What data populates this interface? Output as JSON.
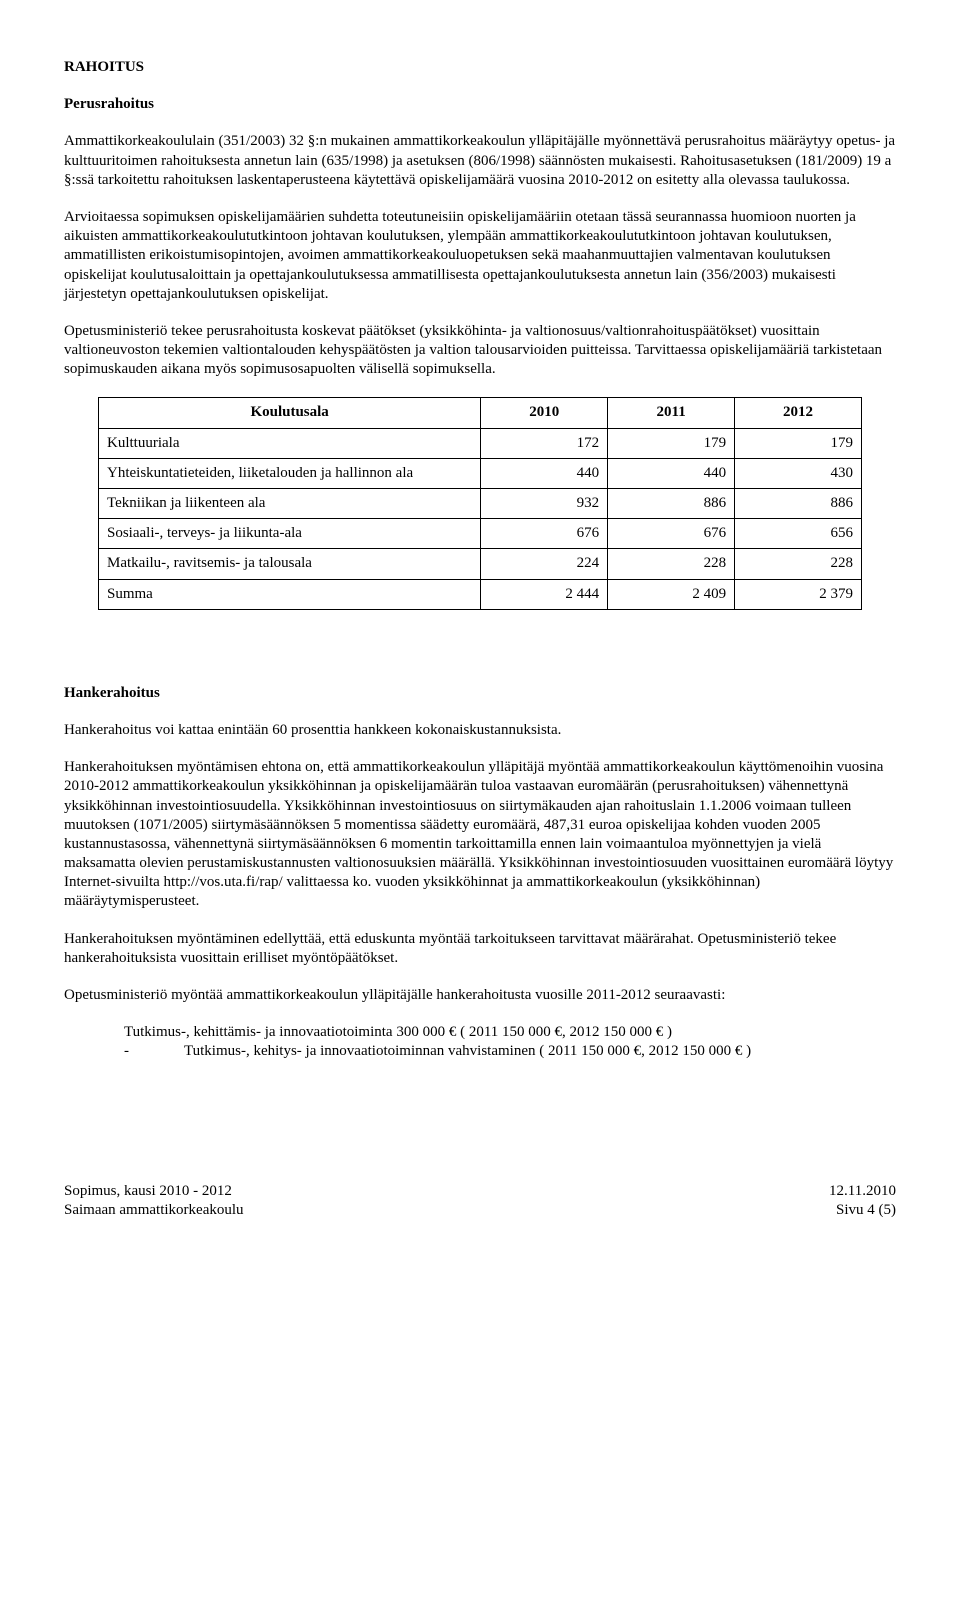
{
  "section1": {
    "heading_main": "RAHOITUS",
    "heading_sub": "Perusrahoitus",
    "p1": "Ammattikorkeakoululain (351/2003) 32 §:n mukainen ammattikorkeakoulun ylläpitäjälle myönnettävä perusrahoitus määräytyy opetus- ja kulttuuritoimen rahoituksesta annetun lain (635/1998) ja asetuksen (806/1998) säännösten mukaisesti. Rahoitusasetuksen (181/2009) 19 a §:ssä tarkoitettu rahoituksen laskentaperusteena käytettävä opiskelijamäärä vuosina 2010-2012 on esitetty alla olevassa taulukossa.",
    "p2": "Arvioitaessa sopimuksen opiskelijamäärien suhdetta toteutuneisiin opiskelijamääriin otetaan tässä seurannassa huomioon nuorten ja aikuisten ammattikorkeakoulututkintoon johtavan koulutuksen, ylempään ammattikorkeakoulututkintoon johtavan koulutuksen, ammatillisten erikoistumisopintojen, avoimen ammattikorkeakouluopetuksen sekä maahanmuuttajien valmentavan koulutuksen opiskelijat koulutusaloittain ja opettajankoulutuksessa ammatillisesta opettajankoulutuksesta annetun lain (356/2003) mukaisesti järjestetyn opettajankoulutuksen opiskelijat.",
    "p3": "Opetusministeriö tekee perusrahoitusta koskevat päätökset (yksikköhinta- ja valtionosuus/valtionrahoituspäätökset) vuosittain valtioneuvoston tekemien valtiontalouden kehyspäätösten ja valtion talousarvioiden puitteissa. Tarvittaessa opiskelijamääriä tarkistetaan sopimuskauden aikana myös sopimusosapuolten välisellä sopimuksella."
  },
  "table": {
    "header": {
      "koulutusala": "Koulutusala",
      "y2010": "2010",
      "y2011": "2011",
      "y2012": "2012"
    },
    "rows": [
      {
        "label": "Kulttuuriala",
        "v": [
          "172",
          "179",
          "179"
        ]
      },
      {
        "label": "Yhteiskuntatieteiden, liiketalouden ja hallinnon ala",
        "v": [
          "440",
          "440",
          "430"
        ]
      },
      {
        "label": "Tekniikan ja liikenteen ala",
        "v": [
          "932",
          "886",
          "886"
        ]
      },
      {
        "label": "Sosiaali-, terveys- ja liikunta-ala",
        "v": [
          "676",
          "676",
          "656"
        ]
      },
      {
        "label": "Matkailu-, ravitsemis- ja talousala",
        "v": [
          "224",
          "228",
          "228"
        ]
      },
      {
        "label": "Summa",
        "v": [
          "2 444",
          "2 409",
          "2 379"
        ]
      }
    ]
  },
  "section2": {
    "heading": "Hankerahoitus",
    "p1": "Hankerahoitus voi kattaa enintään 60 prosenttia hankkeen kokonaiskustannuksista.",
    "p2": "Hankerahoituksen myöntämisen ehtona on, että ammattikorkeakoulun ylläpitäjä myöntää ammattikorkeakoulun käyttömenoihin vuosina 2010-2012 ammattikorkeakoulun yksikköhinnan ja opiskelijamäärän tuloa vastaavan euromäärän (perusrahoituksen) vähennettynä yksikköhinnan investointiosuudella. Yksikköhinnan investointiosuus on siirtymäkauden ajan rahoituslain 1.1.2006 voimaan tulleen muutoksen (1071/2005) siirtymäsäännöksen 5 momentissa säädetty euromäärä, 487,31 euroa opiskelijaa kohden vuoden 2005 kustannustasossa, vähennettynä siirtymäsäännöksen 6 momentin tarkoittamilla ennen lain voimaantuloa myönnettyjen ja vielä maksamatta olevien perustamiskustannusten valtionosuuksien määrällä. Yksikköhinnan investointiosuuden vuosittainen euromäärä löytyy Internet-sivuilta http://vos.uta.fi/rap/ valittaessa ko. vuoden yksikköhinnat ja ammattikorkeakoulun (yksikköhinnan) määräytymisperusteet.",
    "p3": "Hankerahoituksen myöntäminen edellyttää, että eduskunta myöntää tarkoitukseen tarvittavat määrärahat. Opetusministeriö tekee hankerahoituksista vuosittain erilliset myöntöpäätökset.",
    "p4": "Opetusministeriö myöntää ammattikorkeakoulun ylläpitäjälle hankerahoitusta vuosille 2011-2012 seuraavasti:",
    "indent_line1": "Tutkimus-, kehittämis- ja innovaatiotoiminta 300 000 € ( 2011 150 000 €, 2012 150 000 € )",
    "indent_sub_dash": "-",
    "indent_sub_text": "Tutkimus-, kehitys- ja innovaatiotoiminnan vahvistaminen ( 2011 150 000 €, 2012 150 000 € )"
  },
  "footer": {
    "left1": "Sopimus, kausi 2010 - 2012",
    "left2": "Saimaan ammattikorkeakoulu",
    "right1": "12.11.2010",
    "right2": "Sivu 4 (5)"
  }
}
